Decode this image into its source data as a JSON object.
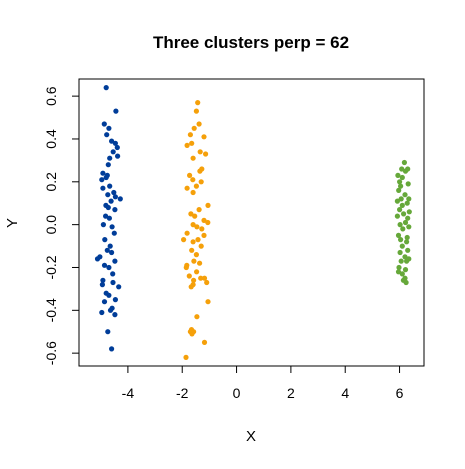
{
  "chart_data": {
    "type": "scatter",
    "title": "Three clusters perp = 62",
    "xlabel": "X",
    "ylabel": "Y",
    "xlim": [
      -5.8,
      6.9
    ],
    "ylim": [
      -0.66,
      0.68
    ],
    "xticks": [
      -4,
      -2,
      0,
      2,
      4,
      6
    ],
    "yticks": [
      -0.6,
      -0.4,
      -0.2,
      0.0,
      0.2,
      0.4,
      0.6
    ],
    "xtick_labels": [
      "-4",
      "-2",
      "0",
      "2",
      "4",
      "6"
    ],
    "ytick_labels": [
      "-0.6",
      "-0.4",
      "-0.2",
      "0.0",
      "0.2",
      "0.4",
      "0.6"
    ],
    "grid": false,
    "legend": "none",
    "series": [
      {
        "color": "#003d99",
        "points": [
          [
            -4.8,
            0.64
          ],
          [
            -4.44,
            0.53
          ],
          [
            -4.87,
            0.47
          ],
          [
            -4.7,
            0.45
          ],
          [
            -4.78,
            0.42
          ],
          [
            -4.6,
            0.39
          ],
          [
            -4.46,
            0.38
          ],
          [
            -4.39,
            0.36
          ],
          [
            -4.54,
            0.34
          ],
          [
            -4.38,
            0.32
          ],
          [
            -4.67,
            0.31
          ],
          [
            -4.72,
            0.28
          ],
          [
            -4.92,
            0.24
          ],
          [
            -4.76,
            0.23
          ],
          [
            -4.8,
            0.22
          ],
          [
            -4.96,
            0.21
          ],
          [
            -4.67,
            0.18
          ],
          [
            -4.92,
            0.17
          ],
          [
            -4.52,
            0.15
          ],
          [
            -4.74,
            0.14
          ],
          [
            -4.46,
            0.13
          ],
          [
            -4.28,
            0.12
          ],
          [
            -4.62,
            0.11
          ],
          [
            -4.81,
            0.09
          ],
          [
            -4.72,
            0.08
          ],
          [
            -4.48,
            0.07
          ],
          [
            -4.82,
            0.04
          ],
          [
            -4.68,
            0.03
          ],
          [
            -4.9,
            0.0
          ],
          [
            -4.58,
            -0.01
          ],
          [
            -4.5,
            -0.04
          ],
          [
            -4.85,
            -0.07
          ],
          [
            -4.65,
            -0.1
          ],
          [
            -4.76,
            -0.12
          ],
          [
            -4.6,
            -0.13
          ],
          [
            -5.03,
            -0.15
          ],
          [
            -5.12,
            -0.16
          ],
          [
            -4.48,
            -0.17
          ],
          [
            -4.86,
            -0.19
          ],
          [
            -4.7,
            -0.2
          ],
          [
            -4.56,
            -0.23
          ],
          [
            -4.92,
            -0.26
          ],
          [
            -4.55,
            -0.27
          ],
          [
            -4.94,
            -0.28
          ],
          [
            -4.34,
            -0.29
          ],
          [
            -4.8,
            -0.32
          ],
          [
            -4.7,
            -0.33
          ],
          [
            -4.46,
            -0.35
          ],
          [
            -4.86,
            -0.36
          ],
          [
            -4.58,
            -0.39
          ],
          [
            -4.64,
            -0.4
          ],
          [
            -4.96,
            -0.41
          ],
          [
            -4.48,
            -0.42
          ],
          [
            -4.74,
            -0.5
          ],
          [
            -4.6,
            -0.58
          ]
        ]
      },
      {
        "color": "#f5a00a",
        "points": [
          [
            -1.43,
            0.57
          ],
          [
            -1.48,
            0.53
          ],
          [
            -1.38,
            0.47
          ],
          [
            -1.56,
            0.45
          ],
          [
            -1.7,
            0.42
          ],
          [
            -1.2,
            0.41
          ],
          [
            -1.82,
            0.37
          ],
          [
            -1.65,
            0.38
          ],
          [
            -1.34,
            0.34
          ],
          [
            -1.14,
            0.33
          ],
          [
            -1.6,
            0.31
          ],
          [
            -1.28,
            0.26
          ],
          [
            -1.35,
            0.25
          ],
          [
            -1.73,
            0.23
          ],
          [
            -1.61,
            0.21
          ],
          [
            -1.3,
            0.2
          ],
          [
            -1.82,
            0.17
          ],
          [
            -1.48,
            0.18
          ],
          [
            -1.6,
            0.15
          ],
          [
            -1.05,
            0.09
          ],
          [
            -1.38,
            0.07
          ],
          [
            -1.68,
            0.05
          ],
          [
            -1.54,
            0.04
          ],
          [
            -1.2,
            0.02
          ],
          [
            -1.06,
            0.01
          ],
          [
            -1.6,
            0.0
          ],
          [
            -1.46,
            -0.01
          ],
          [
            -1.28,
            -0.02
          ],
          [
            -1.82,
            -0.04
          ],
          [
            -1.2,
            -0.05
          ],
          [
            -1.95,
            -0.07
          ],
          [
            -1.42,
            -0.07
          ],
          [
            -1.6,
            -0.08
          ],
          [
            -1.3,
            -0.1
          ],
          [
            -1.65,
            -0.12
          ],
          [
            -1.48,
            -0.14
          ],
          [
            -1.57,
            -0.17
          ],
          [
            -1.36,
            -0.18
          ],
          [
            -1.83,
            -0.19
          ],
          [
            -1.85,
            -0.2
          ],
          [
            -1.47,
            -0.22
          ],
          [
            -1.74,
            -0.24
          ],
          [
            -1.18,
            -0.25
          ],
          [
            -1.32,
            -0.25
          ],
          [
            -1.58,
            -0.26
          ],
          [
            -1.1,
            -0.27
          ],
          [
            -1.6,
            -0.28
          ],
          [
            -1.67,
            -0.29
          ],
          [
            -1.05,
            -0.36
          ],
          [
            -1.46,
            -0.43
          ],
          [
            -1.66,
            -0.49
          ],
          [
            -1.7,
            -0.5
          ],
          [
            -1.58,
            -0.5
          ],
          [
            -1.64,
            -0.51
          ],
          [
            -1.18,
            -0.55
          ],
          [
            -1.86,
            -0.62
          ]
        ]
      },
      {
        "color": "#66a83a",
        "points": [
          [
            6.18,
            0.29
          ],
          [
            6.3,
            0.26
          ],
          [
            6.08,
            0.26
          ],
          [
            6.22,
            0.25
          ],
          [
            5.94,
            0.23
          ],
          [
            6.1,
            0.22
          ],
          [
            6.0,
            0.2
          ],
          [
            6.32,
            0.19
          ],
          [
            6.04,
            0.18
          ],
          [
            5.97,
            0.16
          ],
          [
            6.2,
            0.14
          ],
          [
            6.06,
            0.12
          ],
          [
            6.34,
            0.12
          ],
          [
            5.92,
            0.11
          ],
          [
            6.28,
            0.1
          ],
          [
            6.1,
            0.09
          ],
          [
            6.0,
            0.07
          ],
          [
            6.36,
            0.06
          ],
          [
            6.15,
            0.05
          ],
          [
            5.92,
            0.04
          ],
          [
            6.3,
            0.03
          ],
          [
            6.22,
            0.01
          ],
          [
            6.02,
            0.0
          ],
          [
            6.34,
            -0.01
          ],
          [
            6.12,
            -0.02
          ],
          [
            5.96,
            -0.05
          ],
          [
            6.28,
            -0.06
          ],
          [
            6.04,
            -0.07
          ],
          [
            6.26,
            -0.08
          ],
          [
            6.1,
            -0.1
          ],
          [
            6.3,
            -0.12
          ],
          [
            6.02,
            -0.13
          ],
          [
            6.2,
            -0.15
          ],
          [
            6.34,
            -0.16
          ],
          [
            6.06,
            -0.17
          ],
          [
            6.26,
            -0.17
          ],
          [
            5.98,
            -0.2
          ],
          [
            6.22,
            -0.21
          ],
          [
            5.96,
            -0.22
          ],
          [
            6.1,
            -0.23
          ],
          [
            6.2,
            -0.25
          ],
          [
            6.14,
            -0.26
          ],
          [
            6.24,
            -0.27
          ]
        ]
      }
    ]
  }
}
